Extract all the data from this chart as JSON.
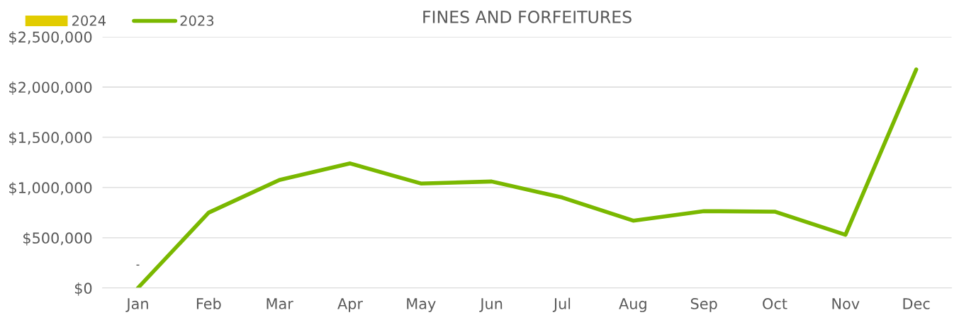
{
  "chart_data": {
    "type": "line",
    "title": "FINES AND FORFEITURES",
    "categories": [
      "Jan",
      "Feb",
      "Mar",
      "Apr",
      "May",
      "Jun",
      "Jul",
      "Aug",
      "Sep",
      "Oct",
      "Nov",
      "Dec"
    ],
    "series": [
      {
        "name": "2024",
        "type": "bar",
        "color": "#e2cc00",
        "values": [
          0,
          null,
          null,
          null,
          null,
          null,
          null,
          null,
          null,
          null,
          null,
          null
        ],
        "value_labels": [
          "-",
          null,
          null,
          null,
          null,
          null,
          null,
          null,
          null,
          null,
          null,
          null
        ]
      },
      {
        "name": "2023",
        "color": "#7ab800",
        "values": [
          0,
          750000,
          1075000,
          1240000,
          1040000,
          1060000,
          900000,
          670000,
          765000,
          760000,
          530000,
          2175000
        ]
      }
    ],
    "ylim": [
      0,
      2500000
    ],
    "yticks": [
      {
        "value": 0,
        "label": "$0"
      },
      {
        "value": 500000,
        "label": "$500,000"
      },
      {
        "value": 1000000,
        "label": "$1,000,000"
      },
      {
        "value": 1500000,
        "label": "$1,500,000"
      },
      {
        "value": 2000000,
        "label": "$2,000,000"
      },
      {
        "value": 2500000,
        "label": "$2,500,000"
      }
    ],
    "grid": "y",
    "legend": "top left",
    "marker": "none",
    "line_style": "solid"
  }
}
